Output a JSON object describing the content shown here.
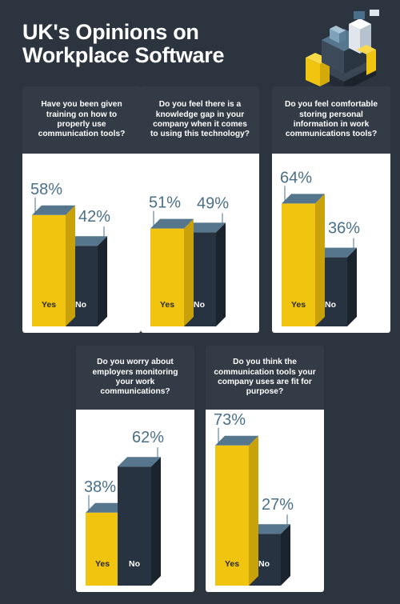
{
  "title": {
    "line1": "UK's Opinions on",
    "line2": "Workplace Software"
  },
  "colors": {
    "yes": "#f1c40f",
    "no": "#283341",
    "top": "#55768d",
    "label": "#4a6f88",
    "background": "#2c3440"
  },
  "illustration": {
    "icon": "office-building-isometric-icon"
  },
  "chart_data": [
    {
      "type": "bar",
      "title": "Have you been given training on how to properly use communication tools?",
      "categories": [
        "Yes",
        "No"
      ],
      "values": [
        58,
        42
      ],
      "unit": "%"
    },
    {
      "type": "bar",
      "title": "Do you feel there is a knowledge gap in your company when it comes to using this technology?",
      "categories": [
        "Yes",
        "No"
      ],
      "values": [
        51,
        49
      ],
      "unit": "%"
    },
    {
      "type": "bar",
      "title": "Do you feel comfortable storing personal information in work communications tools?",
      "categories": [
        "Yes",
        "No"
      ],
      "values": [
        64,
        36
      ],
      "unit": "%"
    },
    {
      "type": "bar",
      "title": "Do you worry about employers monitoring your work communications?",
      "categories": [
        "Yes",
        "No"
      ],
      "values": [
        38,
        62
      ],
      "unit": "%"
    },
    {
      "type": "bar",
      "title": "Do you think the communication tools your company uses are fit for purpose?",
      "categories": [
        "Yes",
        "No"
      ],
      "values": [
        73,
        27
      ],
      "unit": "%"
    }
  ]
}
